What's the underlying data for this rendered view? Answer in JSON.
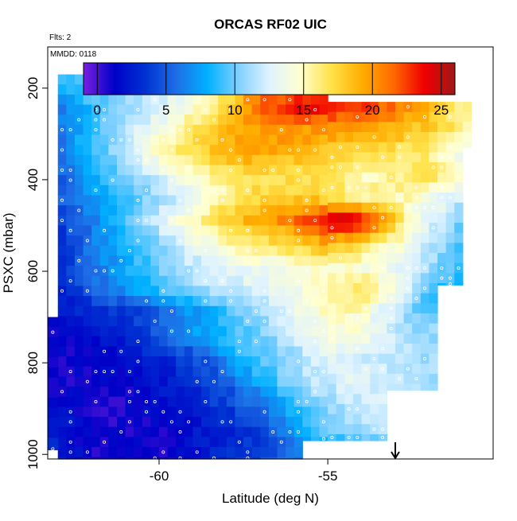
{
  "chart_data": {
    "type": "heatmap",
    "title": "ORCAS RF02 UIC",
    "annotations": {
      "flights": "Flts: 2",
      "date": "MMDD: 0118"
    },
    "xlabel": "Latitude (deg N)",
    "ylabel": "PSXC (mbar)",
    "xlim": [
      -63.3,
      -50.1
    ],
    "ylim": [
      1010,
      110
    ],
    "y_reversed": true,
    "xticks": [
      -60,
      -55
    ],
    "yticks": [
      200,
      400,
      600,
      800,
      1000
    ],
    "colorbar": {
      "range": [
        -1,
        26
      ],
      "ticks": [
        0,
        5,
        10,
        15,
        20,
        25
      ],
      "stops": [
        "#7a1fe0",
        "#0000c8",
        "#0032d2",
        "#1e6ee6",
        "#00b0ff",
        "#7fd0ff",
        "#dff3ff",
        "#ffffd0",
        "#ffe24a",
        "#ffad00",
        "#ff6a00",
        "#f00000",
        "#a01818"
      ],
      "placement": "top"
    },
    "columns": {
      "x_start": -63.0,
      "dx": 0.25,
      "count": 49,
      "segments": [
        {
          "from": -63.0,
          "to": -55.7,
          "pmin": 170,
          "pmax": 1010
        },
        {
          "from": -55.7,
          "to": -55.0,
          "pmin": 170,
          "pmax": 970
        },
        {
          "from": -55.0,
          "to": -53.3,
          "pmin": 230,
          "pmax": 970
        },
        {
          "from": -53.3,
          "to": -51.7,
          "pmin": 230,
          "pmax": 860
        },
        {
          "from": -51.7,
          "to": -50.9,
          "pmin": 230,
          "pmax": 630
        },
        {
          "from": -50.9,
          "to": -50.3,
          "pmin": 230,
          "pmax": 330
        }
      ],
      "lower_ext": {
        "from": -63.3,
        "to": -63.0,
        "pmin": 700,
        "pmax": 990
      }
    },
    "rows": [
      {
        "p": 190,
        "w": [
          [
            -63,
            9
          ],
          [
            -61,
            11
          ],
          [
            -59,
            14
          ],
          [
            -57.5,
            19
          ],
          [
            -55.7,
            21
          ]
        ]
      },
      {
        "p": 240,
        "w": [
          [
            -63,
            6
          ],
          [
            -61.5,
            10
          ],
          [
            -59.5,
            13
          ],
          [
            -58,
            17
          ],
          [
            -57,
            22
          ],
          [
            -55.5,
            24
          ],
          [
            -53.5,
            22
          ],
          [
            -52.5,
            20
          ],
          [
            -51,
            16
          ]
        ]
      },
      {
        "p": 290,
        "w": [
          [
            -63,
            6
          ],
          [
            -61.5,
            10
          ],
          [
            -60,
            14
          ],
          [
            -58.5,
            18
          ],
          [
            -57,
            20
          ],
          [
            -54.5,
            20
          ],
          [
            -53,
            19
          ],
          [
            -51.5,
            17
          ],
          [
            -50.5,
            15
          ]
        ]
      },
      {
        "p": 340,
        "w": [
          [
            -63,
            6
          ],
          [
            -61.5,
            10
          ],
          [
            -60.5,
            14
          ],
          [
            -59,
            17
          ],
          [
            -57.5,
            20
          ],
          [
            -56,
            19
          ],
          [
            -54,
            17
          ],
          [
            -52,
            16
          ],
          [
            -51,
            13
          ]
        ]
      },
      {
        "p": 390,
        "w": [
          [
            -63,
            5
          ],
          [
            -62,
            8
          ],
          [
            -60.5,
            11
          ],
          [
            -59,
            15
          ],
          [
            -57.5,
            17
          ],
          [
            -55.5,
            17
          ],
          [
            -54,
            15
          ],
          [
            -52,
            17
          ],
          [
            -51,
            14
          ]
        ]
      },
      {
        "p": 440,
        "w": [
          [
            -63,
            5
          ],
          [
            -62,
            7
          ],
          [
            -60.5,
            10
          ],
          [
            -59,
            13
          ],
          [
            -57.5,
            17
          ],
          [
            -55.5,
            18
          ],
          [
            -54,
            16
          ],
          [
            -52.5,
            15
          ],
          [
            -51,
            12
          ]
        ]
      },
      {
        "p": 490,
        "w": [
          [
            -63,
            4
          ],
          [
            -62,
            6
          ],
          [
            -61,
            9
          ],
          [
            -59.5,
            14
          ],
          [
            -58,
            18
          ],
          [
            -56.5,
            20
          ],
          [
            -55.5,
            23
          ],
          [
            -54.5,
            25
          ],
          [
            -53.5,
            22
          ],
          [
            -52.5,
            14
          ],
          [
            -51,
            10
          ]
        ]
      },
      {
        "p": 540,
        "w": [
          [
            -63,
            3
          ],
          [
            -62,
            6
          ],
          [
            -60.5,
            9
          ],
          [
            -59.5,
            12
          ],
          [
            -58,
            15
          ],
          [
            -56.5,
            17
          ],
          [
            -55,
            19
          ],
          [
            -53.5,
            16
          ],
          [
            -52,
            12
          ],
          [
            -51,
            9
          ]
        ]
      },
      {
        "p": 590,
        "w": [
          [
            -63,
            3
          ],
          [
            -62,
            6
          ],
          [
            -60.5,
            9
          ],
          [
            -59.5,
            11
          ],
          [
            -58,
            13
          ],
          [
            -56.5,
            14
          ],
          [
            -55,
            15
          ],
          [
            -53.5,
            14
          ],
          [
            -52,
            11
          ],
          [
            -51,
            9
          ]
        ]
      },
      {
        "p": 640,
        "w": [
          [
            -63,
            3
          ],
          [
            -62,
            5
          ],
          [
            -60.5,
            8
          ],
          [
            -59.5,
            10
          ],
          [
            -58,
            12
          ],
          [
            -56.5,
            13
          ],
          [
            -55,
            15
          ],
          [
            -54,
            17
          ],
          [
            -53,
            14
          ],
          [
            -52,
            9
          ],
          [
            -51.5,
            8
          ]
        ]
      },
      {
        "p": 690,
        "w": [
          [
            -63,
            2
          ],
          [
            -62,
            3
          ],
          [
            -60.5,
            4
          ],
          [
            -59.5,
            6
          ],
          [
            -58,
            9
          ],
          [
            -56.5,
            12
          ],
          [
            -55.5,
            14
          ],
          [
            -54.5,
            16
          ],
          [
            -53.5,
            13
          ],
          [
            -52.5,
            10
          ],
          [
            -51.5,
            9
          ]
        ]
      },
      {
        "p": 740,
        "w": [
          [
            -63.3,
            1
          ],
          [
            -62,
            2
          ],
          [
            -61,
            3
          ],
          [
            -60,
            5
          ],
          [
            -58.5,
            8
          ],
          [
            -57,
            10
          ],
          [
            -56,
            12
          ],
          [
            -55,
            14
          ],
          [
            -54,
            14
          ],
          [
            -53,
            12
          ],
          [
            -52,
            11
          ]
        ]
      },
      {
        "p": 790,
        "w": [
          [
            -63.3,
            1
          ],
          [
            -62,
            1
          ],
          [
            -61,
            2
          ],
          [
            -60,
            3
          ],
          [
            -58.5,
            5
          ],
          [
            -57.5,
            9
          ],
          [
            -56,
            11
          ],
          [
            -55,
            13
          ],
          [
            -54,
            12
          ],
          [
            -53,
            12
          ],
          [
            -52,
            11
          ]
        ]
      },
      {
        "p": 840,
        "w": [
          [
            -63.3,
            1
          ],
          [
            -62,
            1
          ],
          [
            -61,
            1
          ],
          [
            -60,
            2
          ],
          [
            -59,
            3
          ],
          [
            -58,
            5
          ],
          [
            -57,
            8
          ],
          [
            -56,
            11
          ],
          [
            -55,
            12
          ],
          [
            -54,
            13
          ],
          [
            -53,
            12
          ],
          [
            -52,
            11
          ]
        ]
      },
      {
        "p": 890,
        "w": [
          [
            -63.3,
            2
          ],
          [
            -62,
            1
          ],
          [
            -61.5,
            0
          ],
          [
            -61,
            1
          ],
          [
            -60,
            2
          ],
          [
            -59,
            3
          ],
          [
            -58,
            4
          ],
          [
            -57,
            6
          ],
          [
            -56,
            9
          ],
          [
            -55,
            11
          ],
          [
            -54,
            12
          ],
          [
            -53.3,
            12
          ]
        ]
      },
      {
        "p": 940,
        "w": [
          [
            -63.3,
            3
          ],
          [
            -62,
            1
          ],
          [
            -61,
            1
          ],
          [
            -60,
            1
          ],
          [
            -59,
            2
          ],
          [
            -58,
            3
          ],
          [
            -57,
            4
          ],
          [
            -56,
            7
          ],
          [
            -55,
            10
          ],
          [
            -54,
            11
          ],
          [
            -53.3,
            12
          ]
        ]
      },
      {
        "p": 990,
        "w": [
          [
            -63.3,
            3
          ],
          [
            -62,
            1
          ],
          [
            -61,
            1
          ],
          [
            -60,
            1
          ],
          [
            -59,
            2
          ],
          [
            -58,
            3
          ],
          [
            -57,
            4
          ],
          [
            -56,
            6
          ],
          [
            -55.3,
            8
          ]
        ]
      }
    ],
    "grid": false,
    "overlay": {
      "marker": "open circles",
      "arrow_x": -53.0
    }
  }
}
